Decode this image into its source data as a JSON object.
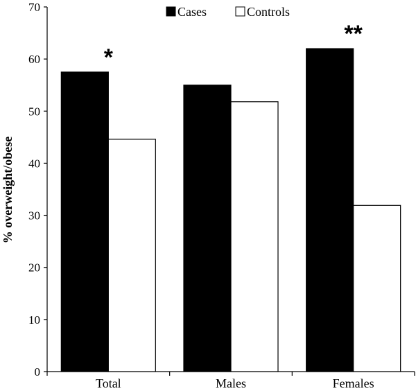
{
  "chart_data": {
    "type": "bar",
    "title": "",
    "xlabel": "",
    "ylabel": "% overweight/obese",
    "ylim": [
      0,
      70
    ],
    "yticks": [
      0,
      10,
      20,
      30,
      40,
      50,
      60,
      70
    ],
    "categories": [
      "Total",
      "Males",
      "Females"
    ],
    "series": [
      {
        "name": "Cases",
        "color": "#000000",
        "values": [
          57.5,
          55.0,
          62.0
        ]
      },
      {
        "name": "Controls",
        "color": "#ffffff",
        "values": [
          44.6,
          51.8,
          31.9
        ]
      }
    ],
    "annotations": [
      {
        "category": "Total",
        "text": "*"
      },
      {
        "category": "Females",
        "text": "**"
      }
    ],
    "legend": {
      "position": "top-center",
      "entries": [
        "Cases",
        "Controls"
      ]
    },
    "grid": false
  }
}
